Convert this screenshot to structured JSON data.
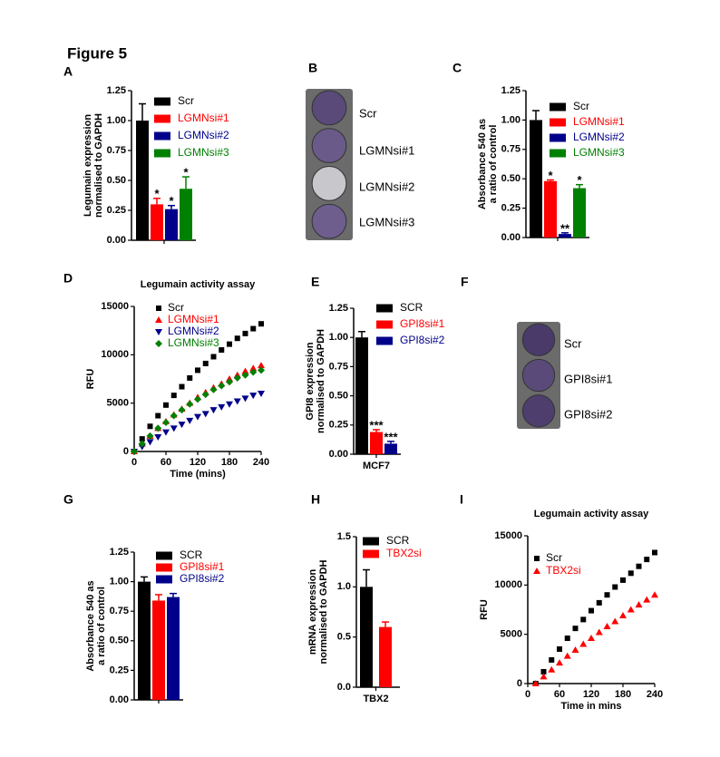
{
  "figure_title": "Figure 5",
  "chart_data": [
    {
      "type": "bar",
      "panel_label": "A",
      "ylabel": [
        "Legumain expression",
        "normalised to GAPDH"
      ],
      "categories": [
        null
      ],
      "ylim": [
        0,
        1.25
      ],
      "yticks": [
        {
          "value": 0,
          "label": "0.00"
        },
        0.25,
        {
          "value": 0.5,
          "label": "0.50"
        },
        0.75,
        {
          "value": 1,
          "label": "1.00"
        },
        1.25
      ],
      "series": [
        {
          "name": "Scr",
          "color": "#000000",
          "values": [
            1.0
          ],
          "errors": [
            0.14
          ],
          "significance": [
            null
          ]
        },
        {
          "name": "LGMNsi#1",
          "color": "#ff0000",
          "values": [
            0.3
          ],
          "errors": [
            0.05
          ],
          "significance": [
            "*"
          ]
        },
        {
          "name": "LGMNsi#2",
          "color": "#00008b",
          "values": [
            0.26
          ],
          "errors": [
            0.03
          ],
          "significance": [
            "*"
          ]
        },
        {
          "name": "LGMNsi#3",
          "color": "#008000",
          "values": [
            0.43
          ],
          "errors": [
            0.1
          ],
          "significance": [
            "*"
          ]
        }
      ]
    },
    {
      "type": "image",
      "panel_label": "B",
      "labels": [
        "Scr",
        "LGMNsi#1",
        "LGMNsi#2",
        "LGMNsi#3"
      ]
    },
    {
      "type": "bar",
      "panel_label": "C",
      "ylabel": [
        "Absorbance 540 as",
        "a ratio of control"
      ],
      "categories": [
        null
      ],
      "ylim": [
        0,
        1.25
      ],
      "yticks": [
        {
          "value": 0,
          "label": "0.00"
        },
        0.25,
        {
          "value": 0.5,
          "label": "0.50"
        },
        0.75,
        {
          "value": 1,
          "label": "1.00"
        },
        1.25
      ],
      "series": [
        {
          "name": "Scr",
          "color": "#000000",
          "values": [
            1.0
          ],
          "errors": [
            0.08
          ],
          "significance": [
            null
          ]
        },
        {
          "name": "LGMNsi#1",
          "color": "#ff0000",
          "values": [
            0.48
          ],
          "errors": [
            0.01
          ],
          "significance": [
            "*"
          ]
        },
        {
          "name": "LGMNsi#2",
          "color": "#00008b",
          "values": [
            0.03
          ],
          "errors": [
            0.01
          ],
          "significance": [
            "**"
          ]
        },
        {
          "name": "LGMNsi#3",
          "color": "#008000",
          "values": [
            0.42
          ],
          "errors": [
            0.03
          ],
          "significance": [
            "*"
          ]
        }
      ]
    },
    {
      "type": "scatter",
      "panel_label": "D",
      "title": "Legumain activity assay",
      "xlabel": "Time (mins)",
      "ylabel": "RFU",
      "x": [
        0,
        15,
        30,
        45,
        60,
        75,
        90,
        105,
        120,
        135,
        150,
        165,
        180,
        195,
        210,
        225,
        240
      ],
      "xlim": [
        0,
        240
      ],
      "xticks": [
        0,
        60,
        120,
        180,
        240
      ],
      "ylim": [
        0,
        15000
      ],
      "yticks": [
        0,
        5000,
        10000,
        15000
      ],
      "series": [
        {
          "name": "Scr",
          "color": "#000000",
          "marker": "square",
          "values": [
            0,
            1300,
            2600,
            3700,
            4800,
            5800,
            6700,
            7600,
            8400,
            9100,
            9800,
            10500,
            11100,
            11700,
            12200,
            12700,
            13200
          ]
        },
        {
          "name": "LGMNsi#1",
          "color": "#ff0000",
          "marker": "triangle-up",
          "values": [
            0,
            800,
            1600,
            2400,
            3100,
            3800,
            4400,
            5000,
            5600,
            6100,
            6600,
            7000,
            7500,
            7900,
            8300,
            8600,
            8900
          ]
        },
        {
          "name": "LGMNsi#2",
          "color": "#00008b",
          "marker": "triangle-down",
          "values": [
            0,
            500,
            1000,
            1500,
            2000,
            2400,
            2800,
            3200,
            3600,
            3900,
            4300,
            4600,
            4900,
            5200,
            5500,
            5800,
            6000
          ]
        },
        {
          "name": "LGMNsi#3",
          "color": "#008000",
          "marker": "diamond",
          "values": [
            0,
            800,
            1600,
            2400,
            3000,
            3700,
            4300,
            4900,
            5400,
            5900,
            6400,
            6800,
            7200,
            7600,
            7900,
            8200,
            8400
          ]
        }
      ]
    },
    {
      "type": "bar",
      "panel_label": "E",
      "ylabel": [
        "GPI8 expression",
        "normalised to GAPDH"
      ],
      "categories": [
        "MCF7"
      ],
      "ylim": [
        0,
        1.25
      ],
      "yticks": [
        {
          "value": 0,
          "label": "0.00"
        },
        0.25,
        {
          "value": 0.5,
          "label": "0.50"
        },
        0.75,
        {
          "value": 1,
          "label": "1.00"
        },
        1.25
      ],
      "series": [
        {
          "name": "SCR",
          "color": "#000000",
          "values": [
            1.0
          ],
          "errors": [
            0.05
          ],
          "significance": [
            null
          ]
        },
        {
          "name": "GPI8si#1",
          "color": "#ff0000",
          "values": [
            0.19
          ],
          "errors": [
            0.02
          ],
          "significance": [
            "***"
          ]
        },
        {
          "name": "GPI8si#2",
          "color": "#00008b",
          "values": [
            0.09
          ],
          "errors": [
            0.02
          ],
          "significance": [
            "***"
          ]
        }
      ]
    },
    {
      "type": "image",
      "panel_label": "F",
      "labels": [
        "Scr",
        "GPI8si#1",
        "GPI8si#2"
      ]
    },
    {
      "type": "bar",
      "panel_label": "G",
      "ylabel": [
        "Absorbance 540 as",
        "a ratio of control"
      ],
      "categories": [
        null
      ],
      "ylim": [
        0,
        1.25
      ],
      "yticks": [
        {
          "value": 0,
          "label": "0.00"
        },
        0.25,
        {
          "value": 0.5,
          "label": "0.50"
        },
        0.75,
        {
          "value": 1,
          "label": "1.00"
        },
        1.25
      ],
      "series": [
        {
          "name": "SCR",
          "color": "#000000",
          "values": [
            1.0
          ],
          "errors": [
            0.04
          ],
          "significance": [
            null
          ]
        },
        {
          "name": "GPI8si#1",
          "color": "#ff0000",
          "values": [
            0.84
          ],
          "errors": [
            0.05
          ],
          "significance": [
            null
          ]
        },
        {
          "name": "GPI8si#2",
          "color": "#00008b",
          "values": [
            0.87
          ],
          "errors": [
            0.03
          ],
          "significance": [
            null
          ]
        }
      ]
    },
    {
      "type": "bar",
      "panel_label": "H",
      "ylabel": [
        "mRNA expression",
        "normalised to GAPDH"
      ],
      "categories": [
        "TBX2"
      ],
      "ylim": [
        0,
        1.5
      ],
      "yticks": [
        {
          "value": 0,
          "label": "0.0"
        },
        0.5,
        {
          "value": 1,
          "label": "1.0"
        },
        1.5
      ],
      "series": [
        {
          "name": "SCR",
          "color": "#000000",
          "values": [
            1.0
          ],
          "errors": [
            0.17
          ],
          "significance": [
            null
          ]
        },
        {
          "name": "TBX2si",
          "color": "#ff0000",
          "values": [
            0.6
          ],
          "errors": [
            0.05
          ],
          "significance": [
            null
          ]
        }
      ]
    },
    {
      "type": "scatter",
      "panel_label": "I",
      "title": "Legumain activity assay",
      "xlabel": "Time in mins",
      "ylabel": "RFU",
      "x": [
        15,
        30,
        45,
        60,
        75,
        90,
        105,
        120,
        135,
        150,
        165,
        180,
        195,
        210,
        225,
        240
      ],
      "xlim": [
        0,
        240
      ],
      "xticks": [
        0,
        60,
        120,
        180,
        240
      ],
      "ylim": [
        0,
        15000
      ],
      "yticks": [
        0,
        5000,
        10000,
        15000
      ],
      "series": [
        {
          "name": "Scr",
          "color": "#000000",
          "marker": "square",
          "values": [
            0,
            1200,
            2400,
            3500,
            4600,
            5600,
            6500,
            7400,
            8200,
            9000,
            9800,
            10500,
            11200,
            11900,
            12600,
            13300
          ]
        },
        {
          "name": "TBX2si",
          "color": "#ff0000",
          "marker": "triangle-up",
          "values": [
            0,
            700,
            1400,
            2100,
            2800,
            3400,
            4000,
            4600,
            5200,
            5800,
            6300,
            6900,
            7500,
            8000,
            8500,
            9000
          ]
        }
      ]
    }
  ]
}
